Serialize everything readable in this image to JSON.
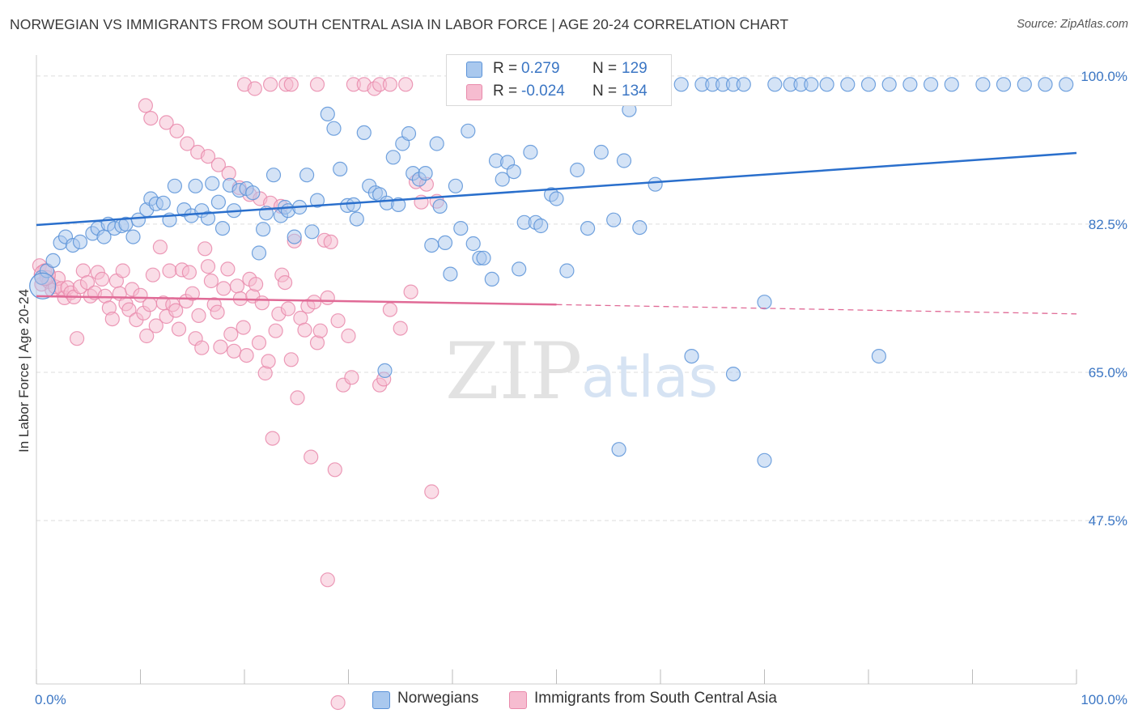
{
  "header": {
    "title": "NORWEGIAN VS IMMIGRANTS FROM SOUTH CENTRAL ASIA IN LABOR FORCE | AGE 20-24 CORRELATION CHART",
    "source": "Source: ZipAtlas.com"
  },
  "watermark": {
    "zip": "ZIP",
    "atlas": "atlas"
  },
  "legend": {
    "rows": [
      {
        "r_label": "R =",
        "r_value": "0.279",
        "n_label": "N =",
        "n_value": "129"
      },
      {
        "r_label": "R =",
        "r_value": "-0.024",
        "n_label": "N =",
        "n_value": "134"
      }
    ]
  },
  "colors": {
    "blue_fill": "#a9c8ee",
    "blue_stroke": "#5b93d8",
    "blue_line": "#2a6fcc",
    "pink_fill": "#f6bcd0",
    "pink_stroke": "#e98aab",
    "pink_line": "#e06a96",
    "tick_text": "#3b76c4",
    "grid": "#dddddd"
  },
  "chart_data": {
    "type": "scatter",
    "title": "NORWEGIAN VS IMMIGRANTS FROM SOUTH CENTRAL ASIA IN LABOR FORCE | AGE 20-24 CORRELATION CHART",
    "xlabel": "",
    "ylabel": "In Labor Force | Age 20-24",
    "x_tick_labels": [
      "0.0%",
      "100.0%"
    ],
    "y_tick_labels": [
      "100.0%",
      "82.5%",
      "65.0%",
      "47.5%"
    ],
    "y_tick_values": [
      100.0,
      82.5,
      65.0,
      47.5
    ],
    "xlim": [
      0,
      100
    ],
    "ylim": [
      28.2,
      101.8
    ],
    "grid": "horizontal dashed",
    "legend_placement": "top-center",
    "series": [
      {
        "name": "Norwegians",
        "r": 0.279,
        "n": 129,
        "trend": {
          "x": [
            0,
            100
          ],
          "y": [
            82.4,
            90.9
          ],
          "style": "solid"
        },
        "points": [
          [
            0.5,
            76.2
          ],
          [
            1.0,
            77.0
          ],
          [
            1.6,
            78.2
          ],
          [
            2.3,
            80.3
          ],
          [
            2.8,
            81.0
          ],
          [
            3.5,
            80.0
          ],
          [
            4.2,
            80.4
          ],
          [
            5.4,
            81.4
          ],
          [
            5.9,
            82.0
          ],
          [
            6.5,
            81.0
          ],
          [
            6.9,
            82.5
          ],
          [
            7.5,
            82.0
          ],
          [
            8.2,
            82.3
          ],
          [
            8.6,
            82.5
          ],
          [
            9.3,
            81.0
          ],
          [
            9.8,
            83.0
          ],
          [
            10.6,
            84.2
          ],
          [
            11.0,
            85.5
          ],
          [
            11.5,
            84.9
          ],
          [
            12.2,
            85.0
          ],
          [
            12.8,
            83.0
          ],
          [
            13.3,
            87.0
          ],
          [
            14.2,
            84.2
          ],
          [
            14.9,
            83.5
          ],
          [
            15.3,
            87.0
          ],
          [
            15.9,
            84.1
          ],
          [
            16.5,
            83.2
          ],
          [
            16.9,
            87.3
          ],
          [
            17.5,
            85.1
          ],
          [
            17.9,
            82.0
          ],
          [
            18.6,
            87.1
          ],
          [
            19.0,
            84.1
          ],
          [
            19.5,
            86.5
          ],
          [
            20.2,
            86.7
          ],
          [
            20.8,
            86.2
          ],
          [
            21.4,
            79.1
          ],
          [
            21.8,
            81.9
          ],
          [
            22.1,
            83.8
          ],
          [
            22.8,
            88.3
          ],
          [
            23.5,
            83.5
          ],
          [
            23.9,
            84.5
          ],
          [
            24.2,
            84.1
          ],
          [
            24.8,
            81.0
          ],
          [
            25.3,
            84.5
          ],
          [
            26.0,
            88.3
          ],
          [
            26.5,
            81.6
          ],
          [
            27.0,
            85.3
          ],
          [
            28.0,
            95.5
          ],
          [
            28.6,
            93.8
          ],
          [
            29.2,
            89.0
          ],
          [
            29.9,
            84.7
          ],
          [
            30.5,
            84.8
          ],
          [
            30.8,
            83.1
          ],
          [
            31.5,
            93.3
          ],
          [
            32.0,
            87.0
          ],
          [
            32.6,
            86.2
          ],
          [
            33.0,
            86.0
          ],
          [
            33.5,
            65.2
          ],
          [
            33.7,
            85.0
          ],
          [
            34.3,
            90.4
          ],
          [
            34.8,
            84.8
          ],
          [
            35.2,
            92.0
          ],
          [
            35.8,
            93.2
          ],
          [
            36.2,
            88.5
          ],
          [
            36.8,
            87.8
          ],
          [
            37.4,
            88.5
          ],
          [
            38.0,
            80.0
          ],
          [
            38.5,
            92.0
          ],
          [
            38.8,
            84.6
          ],
          [
            39.3,
            80.3
          ],
          [
            39.8,
            76.6
          ],
          [
            40.3,
            87.0
          ],
          [
            40.8,
            82.0
          ],
          [
            41.5,
            93.5
          ],
          [
            42.0,
            80.2
          ],
          [
            42.6,
            78.5
          ],
          [
            43.0,
            78.5
          ],
          [
            43.8,
            76.0
          ],
          [
            44.2,
            90.0
          ],
          [
            44.8,
            87.8
          ],
          [
            45.3,
            89.8
          ],
          [
            45.9,
            88.7
          ],
          [
            46.4,
            77.2
          ],
          [
            46.9,
            82.7
          ],
          [
            47.5,
            91.0
          ],
          [
            48.0,
            82.7
          ],
          [
            48.5,
            82.3
          ],
          [
            49.5,
            86.0
          ],
          [
            50.0,
            85.5
          ],
          [
            51.0,
            77.0
          ],
          [
            52.0,
            88.9
          ],
          [
            53.0,
            82.0
          ],
          [
            54.3,
            91.0
          ],
          [
            55.5,
            83.0
          ],
          [
            56.0,
            55.9
          ],
          [
            56.5,
            90.0
          ],
          [
            57.0,
            96.0
          ],
          [
            57.5,
            98.7
          ],
          [
            58.0,
            99.0
          ],
          [
            59.0,
            99.0
          ],
          [
            62.0,
            99.0
          ],
          [
            64.0,
            99.0
          ],
          [
            65.0,
            99.0
          ],
          [
            66.0,
            99.0
          ],
          [
            67.0,
            99.0
          ],
          [
            68.0,
            99.0
          ],
          [
            71.0,
            99.0
          ],
          [
            72.5,
            99.0
          ],
          [
            73.5,
            99.0
          ],
          [
            74.5,
            99.0
          ],
          [
            76.0,
            99.0
          ],
          [
            78.0,
            99.0
          ],
          [
            80.0,
            99.0
          ],
          [
            82.0,
            99.0
          ],
          [
            84.0,
            99.0
          ],
          [
            86.0,
            99.0
          ],
          [
            88.0,
            99.0
          ],
          [
            91.0,
            99.0
          ],
          [
            93.0,
            99.0
          ],
          [
            95.0,
            99.0
          ],
          [
            97.0,
            99.0
          ],
          [
            99.0,
            99.0
          ],
          [
            63.0,
            66.9
          ],
          [
            67.0,
            64.8
          ],
          [
            70.0,
            54.6
          ],
          [
            81.0,
            66.9
          ],
          [
            70.0,
            73.3
          ],
          [
            58.0,
            82.1
          ],
          [
            59.5,
            87.2
          ]
        ]
      },
      {
        "name": "Immigrants from South Central Asia",
        "r": -0.024,
        "n": 134,
        "trend": {
          "x": [
            0,
            50,
            100
          ],
          "y": [
            74.0,
            73.0,
            71.9
          ],
          "style": "solid then dashed"
        },
        "points": [
          [
            0.3,
            77.6
          ],
          [
            0.5,
            75.4
          ],
          [
            0.8,
            77.0
          ],
          [
            1.0,
            76.2
          ],
          [
            1.2,
            75.7
          ],
          [
            1.5,
            74.7
          ],
          [
            1.8,
            75.1
          ],
          [
            2.1,
            76.1
          ],
          [
            2.4,
            74.9
          ],
          [
            2.7,
            73.8
          ],
          [
            3.0,
            75.0
          ],
          [
            3.3,
            74.4
          ],
          [
            3.6,
            73.9
          ],
          [
            3.9,
            69.0
          ],
          [
            4.2,
            75.1
          ],
          [
            4.5,
            77.0
          ],
          [
            4.9,
            75.6
          ],
          [
            5.2,
            74.0
          ],
          [
            5.6,
            74.4
          ],
          [
            5.9,
            76.8
          ],
          [
            6.3,
            76.0
          ],
          [
            6.6,
            74.0
          ],
          [
            7.0,
            72.6
          ],
          [
            7.3,
            71.3
          ],
          [
            7.7,
            75.8
          ],
          [
            8.0,
            74.3
          ],
          [
            8.3,
            77.0
          ],
          [
            8.6,
            73.1
          ],
          [
            8.9,
            72.4
          ],
          [
            9.2,
            74.8
          ],
          [
            9.6,
            71.2
          ],
          [
            10.0,
            74.1
          ],
          [
            10.3,
            72.0
          ],
          [
            10.6,
            69.3
          ],
          [
            10.9,
            73.0
          ],
          [
            11.2,
            76.5
          ],
          [
            11.5,
            70.5
          ],
          [
            11.9,
            79.8
          ],
          [
            12.2,
            73.2
          ],
          [
            12.5,
            71.6
          ],
          [
            12.8,
            77.0
          ],
          [
            13.1,
            73.0
          ],
          [
            13.4,
            72.3
          ],
          [
            13.7,
            70.1
          ],
          [
            14.0,
            77.1
          ],
          [
            14.4,
            73.4
          ],
          [
            14.7,
            76.8
          ],
          [
            15.0,
            74.3
          ],
          [
            15.3,
            69.0
          ],
          [
            15.6,
            71.7
          ],
          [
            15.9,
            67.9
          ],
          [
            16.2,
            79.6
          ],
          [
            16.5,
            77.5
          ],
          [
            16.8,
            75.8
          ],
          [
            17.1,
            73.0
          ],
          [
            17.4,
            72.1
          ],
          [
            17.7,
            68.0
          ],
          [
            18.0,
            74.9
          ],
          [
            18.4,
            77.2
          ],
          [
            18.7,
            69.5
          ],
          [
            19.0,
            67.5
          ],
          [
            19.3,
            75.2
          ],
          [
            19.6,
            73.7
          ],
          [
            19.9,
            70.3
          ],
          [
            20.2,
            67.0
          ],
          [
            20.5,
            76.0
          ],
          [
            20.8,
            74.0
          ],
          [
            21.1,
            75.4
          ],
          [
            21.4,
            68.5
          ],
          [
            21.7,
            73.2
          ],
          [
            22.0,
            64.9
          ],
          [
            22.3,
            66.3
          ],
          [
            22.7,
            57.2
          ],
          [
            23.0,
            69.9
          ],
          [
            23.3,
            71.9
          ],
          [
            23.6,
            76.5
          ],
          [
            23.9,
            75.6
          ],
          [
            24.2,
            72.5
          ],
          [
            24.5,
            66.5
          ],
          [
            24.8,
            80.5
          ],
          [
            25.1,
            62.0
          ],
          [
            25.4,
            71.4
          ],
          [
            25.8,
            70.0
          ],
          [
            26.1,
            72.8
          ],
          [
            26.4,
            55.0
          ],
          [
            26.7,
            73.3
          ],
          [
            27.0,
            68.5
          ],
          [
            27.3,
            69.9
          ],
          [
            27.7,
            80.6
          ],
          [
            28.0,
            73.8
          ],
          [
            28.3,
            80.4
          ],
          [
            28.7,
            53.5
          ],
          [
            29.0,
            71.1
          ],
          [
            29.5,
            63.5
          ],
          [
            30.0,
            69.3
          ],
          [
            30.3,
            64.4
          ],
          [
            33.0,
            63.5
          ],
          [
            33.4,
            64.2
          ],
          [
            34.0,
            72.4
          ],
          [
            35.0,
            70.2
          ],
          [
            36.0,
            74.5
          ],
          [
            36.5,
            87.5
          ],
          [
            37.0,
            85.1
          ],
          [
            37.5,
            87.2
          ],
          [
            38.0,
            50.9
          ],
          [
            38.5,
            85.2
          ],
          [
            28.0,
            40.5
          ],
          [
            29.0,
            26.0
          ],
          [
            24.0,
            99.0
          ],
          [
            24.5,
            99.0
          ],
          [
            27.0,
            99.0
          ],
          [
            30.5,
            99.0
          ],
          [
            31.5,
            99.0
          ],
          [
            32.5,
            98.5
          ],
          [
            33.0,
            99.0
          ],
          [
            34.0,
            99.0
          ],
          [
            35.5,
            99.0
          ],
          [
            20.0,
            99.0
          ],
          [
            21.0,
            98.5
          ],
          [
            22.5,
            99.0
          ],
          [
            10.5,
            96.5
          ],
          [
            11.0,
            95.0
          ],
          [
            12.5,
            94.5
          ],
          [
            13.5,
            93.5
          ],
          [
            14.5,
            92.0
          ],
          [
            15.5,
            91.0
          ],
          [
            16.5,
            90.5
          ],
          [
            17.5,
            89.5
          ],
          [
            18.5,
            88.5
          ],
          [
            19.5,
            86.8
          ],
          [
            20.5,
            86.0
          ],
          [
            21.5,
            85.5
          ],
          [
            22.5,
            85.0
          ],
          [
            23.5,
            84.6
          ]
        ]
      }
    ]
  },
  "bottom_legend": {
    "items": [
      {
        "label": "Norwegians"
      },
      {
        "label": "Immigrants from South Central Asia"
      }
    ]
  }
}
